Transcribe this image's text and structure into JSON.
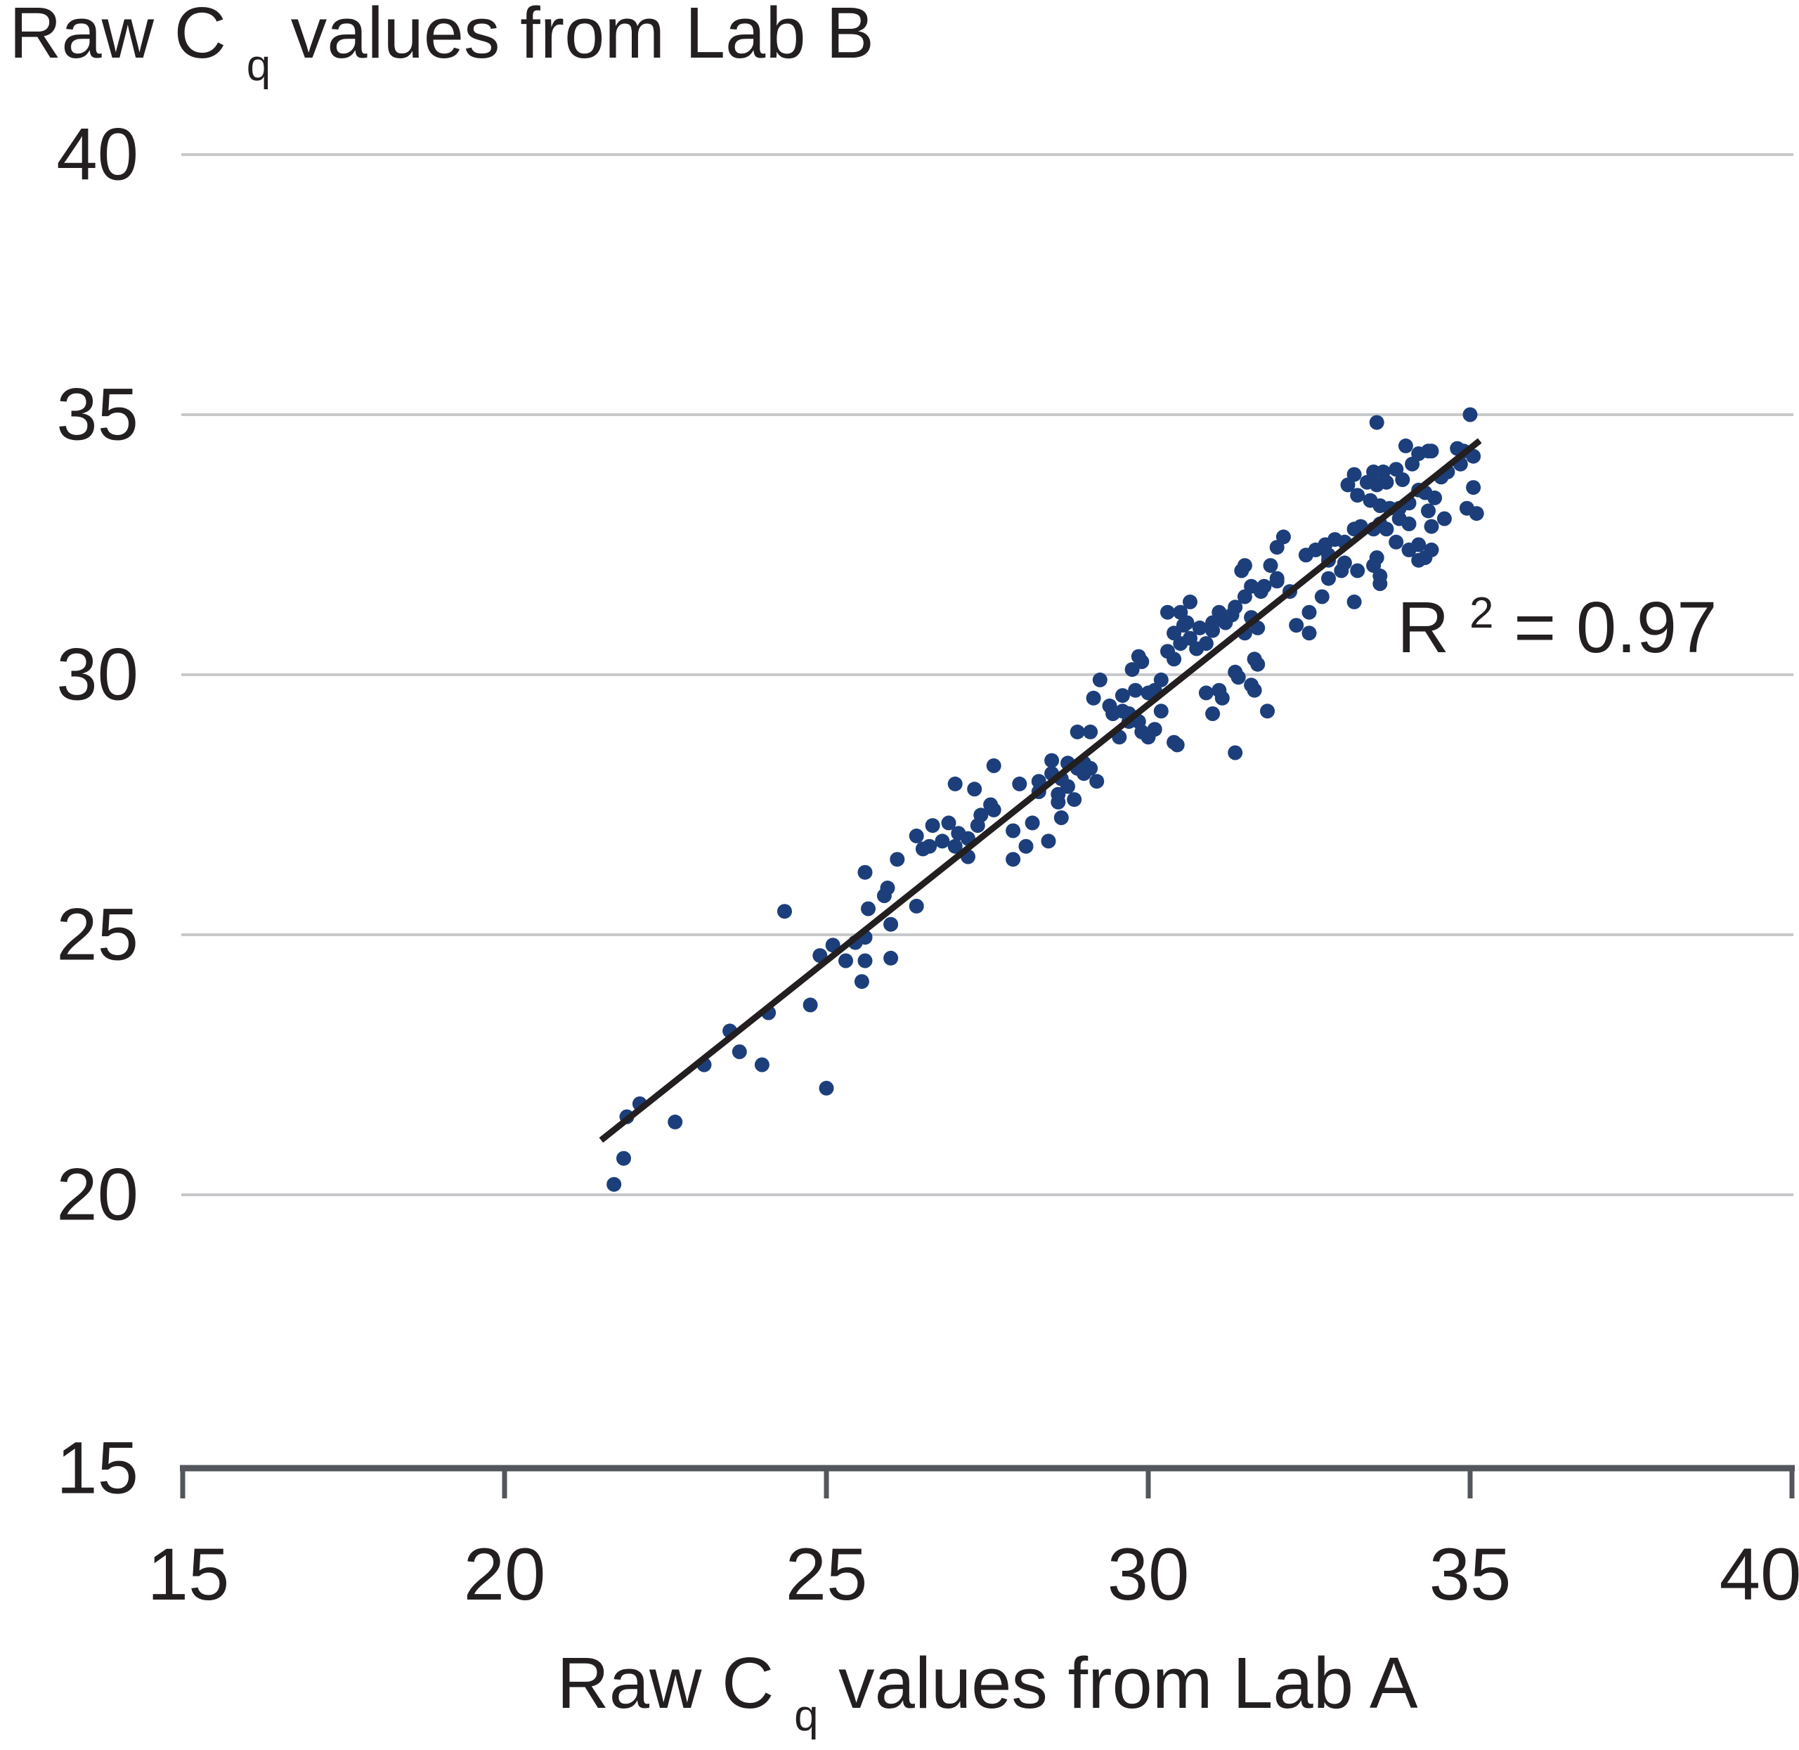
{
  "figure": {
    "title": {
      "prefix": "Raw C",
      "sub": "q",
      "suffix": " values from Lab B"
    },
    "x_axis_title": {
      "prefix": "Raw C",
      "sub": "q",
      "suffix": " values from Lab A"
    },
    "annotation": {
      "base": "R",
      "sup": "2",
      "rest": "= 0.97"
    }
  },
  "chart_data": {
    "type": "scatter",
    "title": "Raw Cq values from Lab B",
    "xlabel": "Raw Cq values from Lab A",
    "ylabel": "Raw Cq values from Lab B",
    "xlim": [
      15,
      40
    ],
    "ylim": [
      15,
      40
    ],
    "x_ticks": [
      15,
      20,
      25,
      30,
      35,
      40
    ],
    "y_ticks": [
      40,
      35,
      30,
      25,
      20,
      15
    ],
    "gridline_values": [
      40,
      35,
      30,
      25,
      20
    ],
    "grid": "horizontal-only",
    "legend": "none",
    "annotation": {
      "text": "R²= 0.97",
      "x": 33.9,
      "y": 31.0
    },
    "regression_line": {
      "x1": 21.5,
      "y1": 21.05,
      "x2": 35.15,
      "y2": 34.5,
      "r_squared": 0.97
    },
    "colors": {
      "point": "#1c3f7b",
      "line": "#231f20",
      "gridline": "#c7c8ca",
      "axis": "#53565c",
      "text": "#231f20"
    },
    "points": [
      [
        21.7,
        20.2
      ],
      [
        21.85,
        20.7
      ],
      [
        21.9,
        21.5
      ],
      [
        22.1,
        21.75
      ],
      [
        22.65,
        21.4
      ],
      [
        23.1,
        22.5
      ],
      [
        23.5,
        23.15
      ],
      [
        23.65,
        22.75
      ],
      [
        24.0,
        22.5
      ],
      [
        24.1,
        23.5
      ],
      [
        24.75,
        23.65
      ],
      [
        25.0,
        22.05
      ],
      [
        24.35,
        25.45
      ],
      [
        24.9,
        24.6
      ],
      [
        25.1,
        24.8
      ],
      [
        25.3,
        24.5
      ],
      [
        25.55,
        24.1
      ],
      [
        25.6,
        24.5
      ],
      [
        25.45,
        24.85
      ],
      [
        25.6,
        24.95
      ],
      [
        25.65,
        25.5
      ],
      [
        25.6,
        26.2
      ],
      [
        26.0,
        25.2
      ],
      [
        26.0,
        24.55
      ],
      [
        25.9,
        25.75
      ],
      [
        25.95,
        25.9
      ],
      [
        26.1,
        26.45
      ],
      [
        26.4,
        25.55
      ],
      [
        26.5,
        26.65
      ],
      [
        26.4,
        26.9
      ],
      [
        26.6,
        26.7
      ],
      [
        26.65,
        27.1
      ],
      [
        26.8,
        26.8
      ],
      [
        26.9,
        27.15
      ],
      [
        27.0,
        26.7
      ],
      [
        27.05,
        26.95
      ],
      [
        27.2,
        26.85
      ],
      [
        27.0,
        27.9
      ],
      [
        27.3,
        27.8
      ],
      [
        27.35,
        27.1
      ],
      [
        27.2,
        26.5
      ],
      [
        27.6,
        28.25
      ],
      [
        27.6,
        27.4
      ],
      [
        27.4,
        27.3
      ],
      [
        27.55,
        27.5
      ],
      [
        27.9,
        27.0
      ],
      [
        27.9,
        26.45
      ],
      [
        28.1,
        26.7
      ],
      [
        28.45,
        26.8
      ],
      [
        28.0,
        27.9
      ],
      [
        28.3,
        27.95
      ],
      [
        28.3,
        27.75
      ],
      [
        28.5,
        28.35
      ],
      [
        28.5,
        28.1
      ],
      [
        28.65,
        28.0
      ],
      [
        28.75,
        27.85
      ],
      [
        28.6,
        27.7
      ],
      [
        28.6,
        27.55
      ],
      [
        28.9,
        28.2
      ],
      [
        29.0,
        28.1
      ],
      [
        29.1,
        28.9
      ],
      [
        29.2,
        27.95
      ],
      [
        28.9,
        28.9
      ],
      [
        29.0,
        28.3
      ],
      [
        29.1,
        28.2
      ],
      [
        28.65,
        27.25
      ],
      [
        28.2,
        27.15
      ],
      [
        28.75,
        28.3
      ],
      [
        28.85,
        27.6
      ],
      [
        29.4,
        29.4
      ],
      [
        29.55,
        28.8
      ],
      [
        29.6,
        29.3
      ],
      [
        29.25,
        29.9
      ],
      [
        29.15,
        29.55
      ],
      [
        29.45,
        29.25
      ],
      [
        29.6,
        29.6
      ],
      [
        29.7,
        29.25
      ],
      [
        29.85,
        29.1
      ],
      [
        29.9,
        28.9
      ],
      [
        30.0,
        28.8
      ],
      [
        30.1,
        28.95
      ],
      [
        30.2,
        29.3
      ],
      [
        30.45,
        28.65
      ],
      [
        30.4,
        28.7
      ],
      [
        29.8,
        29.7
      ],
      [
        29.7,
        29.1
      ],
      [
        29.9,
        30.25
      ],
      [
        30.0,
        29.65
      ],
      [
        30.1,
        29.7
      ],
      [
        30.2,
        29.9
      ],
      [
        29.85,
        30.35
      ],
      [
        29.75,
        30.1
      ],
      [
        30.3,
        30.45
      ],
      [
        30.4,
        30.3
      ],
      [
        30.4,
        30.8
      ],
      [
        30.5,
        31.2
      ],
      [
        30.6,
        31.0
      ],
      [
        30.5,
        30.6
      ],
      [
        30.65,
        30.7
      ],
      [
        30.75,
        30.5
      ],
      [
        30.8,
        30.9
      ],
      [
        30.9,
        30.6
      ],
      [
        31.0,
        31.0
      ],
      [
        31.0,
        30.85
      ],
      [
        31.1,
        31.2
      ],
      [
        31.2,
        31.0
      ],
      [
        31.3,
        31.15
      ],
      [
        31.35,
        31.3
      ],
      [
        31.5,
        31.5
      ],
      [
        31.5,
        30.8
      ],
      [
        31.6,
        31.1
      ],
      [
        31.7,
        30.9
      ],
      [
        30.65,
        31.4
      ],
      [
        30.3,
        31.2
      ],
      [
        30.55,
        30.95
      ],
      [
        30.9,
        29.65
      ],
      [
        31.0,
        29.25
      ],
      [
        31.15,
        29.55
      ],
      [
        31.4,
        29.95
      ],
      [
        31.65,
        29.7
      ],
      [
        31.7,
        30.2
      ],
      [
        31.35,
        28.5
      ],
      [
        31.1,
        29.7
      ],
      [
        31.35,
        30.05
      ],
      [
        31.6,
        29.8
      ],
      [
        31.65,
        30.3
      ],
      [
        31.85,
        29.3
      ],
      [
        31.45,
        32.0
      ],
      [
        31.5,
        32.1
      ],
      [
        31.6,
        31.7
      ],
      [
        31.75,
        31.6
      ],
      [
        31.8,
        31.7
      ],
      [
        32.0,
        32.45
      ],
      [
        32.0,
        31.8
      ],
      [
        32.1,
        32.65
      ],
      [
        32.0,
        31.85
      ],
      [
        32.2,
        31.6
      ],
      [
        31.9,
        32.1
      ],
      [
        32.3,
        30.95
      ],
      [
        32.5,
        30.8
      ],
      [
        32.5,
        31.2
      ],
      [
        32.7,
        31.5
      ],
      [
        32.8,
        31.85
      ],
      [
        33.0,
        32.0
      ],
      [
        33.2,
        31.4
      ],
      [
        32.8,
        32.3
      ],
      [
        33.05,
        32.55
      ],
      [
        32.9,
        32.6
      ],
      [
        32.75,
        32.5
      ],
      [
        32.8,
        32.2
      ],
      [
        33.05,
        32.15
      ],
      [
        33.25,
        32.0
      ],
      [
        33.5,
        32.1
      ],
      [
        33.6,
        31.9
      ],
      [
        32.6,
        32.4
      ],
      [
        32.45,
        32.3
      ],
      [
        33.55,
        32.25
      ],
      [
        33.6,
        31.75
      ],
      [
        33.7,
        32.8
      ],
      [
        33.85,
        32.55
      ],
      [
        34.05,
        32.4
      ],
      [
        34.2,
        32.5
      ],
      [
        34.3,
        32.25
      ],
      [
        34.4,
        32.4
      ],
      [
        34.2,
        32.2
      ],
      [
        34.4,
        32.85
      ],
      [
        33.9,
        33.0
      ],
      [
        34.05,
        32.9
      ],
      [
        33.6,
        32.9
      ],
      [
        33.5,
        32.8
      ],
      [
        33.3,
        32.85
      ],
      [
        33.2,
        32.8
      ],
      [
        33.55,
        34.85
      ],
      [
        35.0,
        35.0
      ],
      [
        34.0,
        34.4
      ],
      [
        34.4,
        34.3
      ],
      [
        34.8,
        34.35
      ],
      [
        34.9,
        34.3
      ],
      [
        35.05,
        34.2
      ],
      [
        34.85,
        34.05
      ],
      [
        34.65,
        33.9
      ],
      [
        34.55,
        33.8
      ],
      [
        34.35,
        34.3
      ],
      [
        33.85,
        33.95
      ],
      [
        33.65,
        33.9
      ],
      [
        33.5,
        33.9
      ],
      [
        33.2,
        33.85
      ],
      [
        33.1,
        33.65
      ],
      [
        33.4,
        33.7
      ],
      [
        33.55,
        33.65
      ],
      [
        33.7,
        33.7
      ],
      [
        33.95,
        33.75
      ],
      [
        34.1,
        34.05
      ],
      [
        34.2,
        34.25
      ],
      [
        33.25,
        33.45
      ],
      [
        33.45,
        33.35
      ],
      [
        33.6,
        33.25
      ],
      [
        33.75,
        33.2
      ],
      [
        33.9,
        33.2
      ],
      [
        34.05,
        33.3
      ],
      [
        35.05,
        33.6
      ],
      [
        34.95,
        33.2
      ],
      [
        35.1,
        33.1
      ],
      [
        34.6,
        33.0
      ],
      [
        34.45,
        33.4
      ],
      [
        34.3,
        33.5
      ],
      [
        34.2,
        33.55
      ],
      [
        34.35,
        33.15
      ]
    ]
  }
}
